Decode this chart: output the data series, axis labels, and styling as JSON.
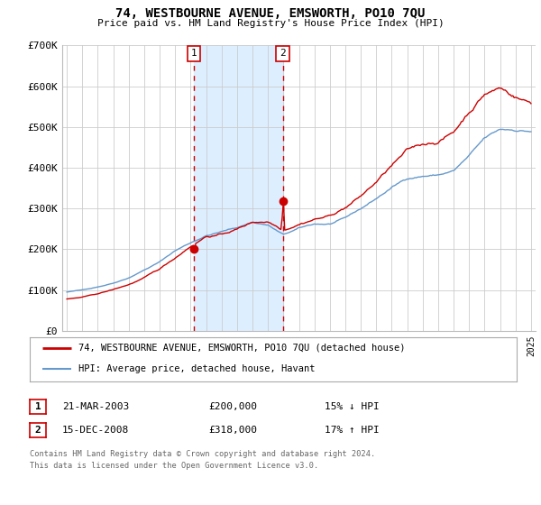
{
  "title": "74, WESTBOURNE AVENUE, EMSWORTH, PO10 7QU",
  "subtitle": "Price paid vs. HM Land Registry's House Price Index (HPI)",
  "legend_line1": "74, WESTBOURNE AVENUE, EMSWORTH, PO10 7QU (detached house)",
  "legend_line2": "HPI: Average price, detached house, Havant",
  "footnote1": "Contains HM Land Registry data © Crown copyright and database right 2024.",
  "footnote2": "This data is licensed under the Open Government Licence v3.0.",
  "transaction1_date": "21-MAR-2003",
  "transaction1_price": "£200,000",
  "transaction1_hpi": "15% ↓ HPI",
  "transaction2_date": "15-DEC-2008",
  "transaction2_price": "£318,000",
  "transaction2_hpi": "17% ↑ HPI",
  "red_color": "#cc0000",
  "blue_color": "#6699cc",
  "shade_color": "#ddeeff",
  "grid_color": "#cccccc",
  "bg_color": "#ffffff",
  "ylim": [
    0,
    700000
  ],
  "yticks": [
    0,
    100000,
    200000,
    300000,
    400000,
    500000,
    600000,
    700000
  ],
  "ytick_labels": [
    "£0",
    "£100K",
    "£200K",
    "£300K",
    "£400K",
    "£500K",
    "£600K",
    "£700K"
  ],
  "xlim_start": 1994.7,
  "xlim_end": 2025.3,
  "transaction1_x": 2003.22,
  "transaction1_y": 200000,
  "transaction2_x": 2008.96,
  "transaction2_y": 318000
}
